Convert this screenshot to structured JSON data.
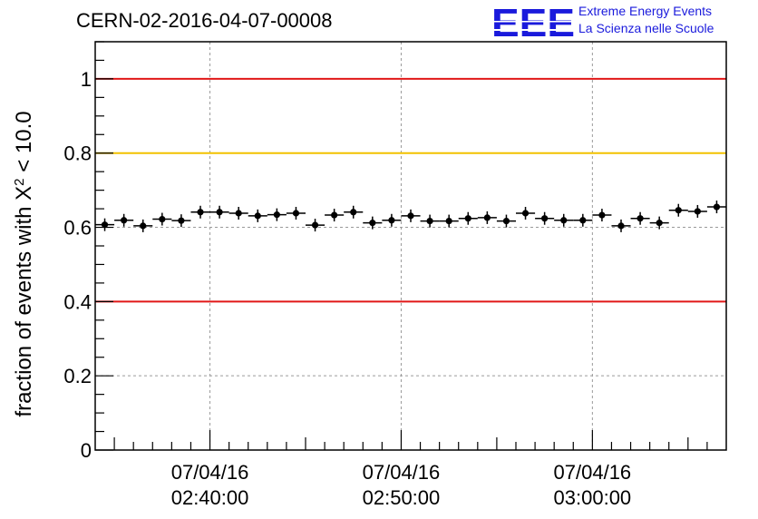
{
  "header": {
    "run_title": "CERN-02-2016-04-07-00008",
    "logo_letters": "EEE",
    "logo_line1": "Extreme Energy Events",
    "logo_line2": "La Scienza nelle Scuole"
  },
  "colors": {
    "threshold_red": "#e11818",
    "threshold_yellow": "#f2c200",
    "logo_blue": "#1a1adc",
    "marker": "#000000",
    "grid": "#9a9a9a"
  },
  "chart_data": {
    "type": "scatter",
    "title": "",
    "ylabel_prefix": "fraction of events with ",
    "ylabel_chi": "X",
    "ylabel_sup": "2",
    "ylabel_suffix": " < 10.0",
    "ylim": [
      0,
      1.1
    ],
    "xlim": [
      "2016-04-07 02:34:00",
      "2016-04-07 03:07:00"
    ],
    "x_ticks": [
      {
        "date": "07/04/16",
        "time": "02:40:00"
      },
      {
        "date": "07/04/16",
        "time": "02:50:00"
      },
      {
        "date": "07/04/16",
        "time": "03:00:00"
      }
    ],
    "y_ticks": [
      "0",
      "0.2",
      "0.4",
      "0.6",
      "0.8",
      "1"
    ],
    "y_tick_values": [
      0,
      0.2,
      0.4,
      0.6,
      0.8,
      1.0
    ],
    "grid": true,
    "reference_lines": [
      {
        "y": 1.0,
        "color": "red"
      },
      {
        "y": 0.8,
        "color": "yellow"
      },
      {
        "y": 0.4,
        "color": "red"
      }
    ],
    "bin_minutes": 1,
    "points": [
      {
        "x": "2016-04-07 02:34:30",
        "y": 0.607
      },
      {
        "x": "2016-04-07 02:35:30",
        "y": 0.619
      },
      {
        "x": "2016-04-07 02:36:30",
        "y": 0.604
      },
      {
        "x": "2016-04-07 02:37:30",
        "y": 0.622
      },
      {
        "x": "2016-04-07 02:38:30",
        "y": 0.618
      },
      {
        "x": "2016-04-07 02:39:30",
        "y": 0.641
      },
      {
        "x": "2016-04-07 02:40:30",
        "y": 0.641
      },
      {
        "x": "2016-04-07 02:41:30",
        "y": 0.638
      },
      {
        "x": "2016-04-07 02:42:30",
        "y": 0.631
      },
      {
        "x": "2016-04-07 02:43:30",
        "y": 0.634
      },
      {
        "x": "2016-04-07 02:44:30",
        "y": 0.638
      },
      {
        "x": "2016-04-07 02:45:30",
        "y": 0.606
      },
      {
        "x": "2016-04-07 02:46:30",
        "y": 0.633
      },
      {
        "x": "2016-04-07 02:47:30",
        "y": 0.641
      },
      {
        "x": "2016-04-07 02:48:30",
        "y": 0.612
      },
      {
        "x": "2016-04-07 02:49:30",
        "y": 0.619
      },
      {
        "x": "2016-04-07 02:50:30",
        "y": 0.631
      },
      {
        "x": "2016-04-07 02:51:30",
        "y": 0.617
      },
      {
        "x": "2016-04-07 02:52:30",
        "y": 0.617
      },
      {
        "x": "2016-04-07 02:53:30",
        "y": 0.624
      },
      {
        "x": "2016-04-07 02:54:30",
        "y": 0.626
      },
      {
        "x": "2016-04-07 02:55:30",
        "y": 0.617
      },
      {
        "x": "2016-04-07 02:56:30",
        "y": 0.638
      },
      {
        "x": "2016-04-07 02:57:30",
        "y": 0.624
      },
      {
        "x": "2016-04-07 02:58:30",
        "y": 0.619
      },
      {
        "x": "2016-04-07 02:59:30",
        "y": 0.619
      },
      {
        "x": "2016-04-07 03:00:30",
        "y": 0.633
      },
      {
        "x": "2016-04-07 03:01:30",
        "y": 0.604
      },
      {
        "x": "2016-04-07 03:02:30",
        "y": 0.624
      },
      {
        "x": "2016-04-07 03:03:30",
        "y": 0.612
      },
      {
        "x": "2016-04-07 03:04:30",
        "y": 0.646
      },
      {
        "x": "2016-04-07 03:05:30",
        "y": 0.643
      },
      {
        "x": "2016-04-07 03:06:30",
        "y": 0.655
      }
    ]
  }
}
